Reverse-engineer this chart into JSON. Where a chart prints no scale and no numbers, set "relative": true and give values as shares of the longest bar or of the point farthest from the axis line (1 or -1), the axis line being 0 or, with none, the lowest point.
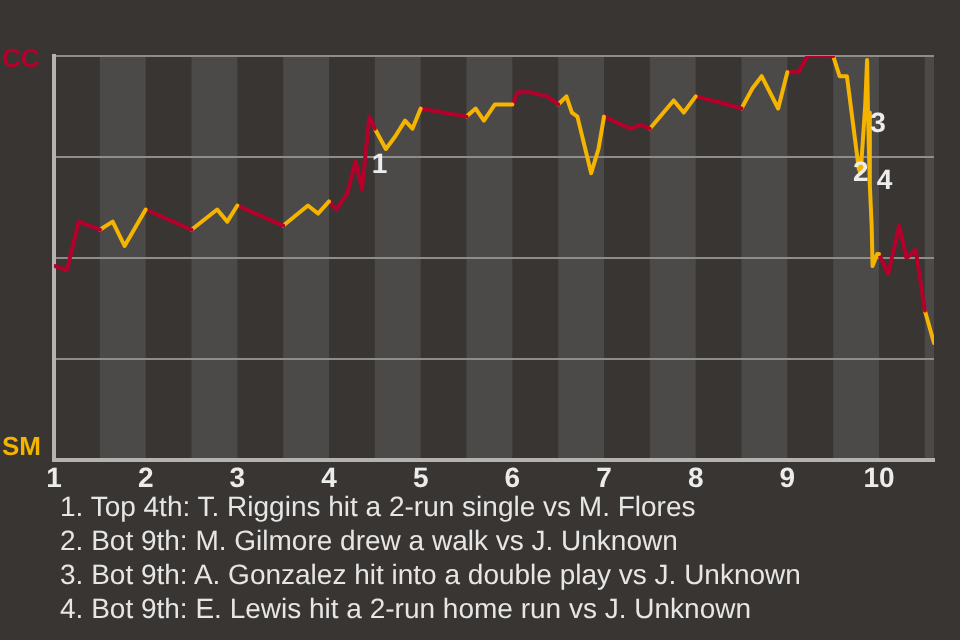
{
  "chart_data": {
    "type": "line",
    "relative": true,
    "xlim": [
      1,
      10.6
    ],
    "xticks": [
      1,
      2,
      3,
      4,
      5,
      6,
      7,
      8,
      9,
      10
    ],
    "grid": "y",
    "marker": "none",
    "line_style": "solid",
    "legend": "left",
    "series": [
      {
        "name": "CC",
        "color": "#b5002c",
        "x": [
          1.01,
          1.14,
          1.27,
          1.5
        ],
        "values": [
          0.48,
          0.47,
          0.59,
          0.57
        ]
      },
      {
        "name": "SM",
        "color": "#f4b400",
        "x": [
          1.5,
          1.64,
          1.77,
          2
        ],
        "values": [
          0.57,
          0.59,
          0.53,
          0.62
        ]
      },
      {
        "color": "#b5002c",
        "x": [
          2,
          2.5
        ],
        "values": [
          0.62,
          0.57
        ]
      },
      {
        "color": "#f4b400",
        "x": [
          2.5,
          2.78,
          2.89,
          3
        ],
        "values": [
          0.57,
          0.62,
          0.59,
          0.63
        ]
      },
      {
        "color": "#b5002c",
        "x": [
          3,
          3.5
        ],
        "values": [
          0.63,
          0.58
        ]
      },
      {
        "color": "#f4b400",
        "x": [
          3.5,
          3.77,
          3.88,
          4
        ],
        "values": [
          0.58,
          0.63,
          0.61,
          0.64
        ]
      },
      {
        "color": "#b5002c",
        "x": [
          4,
          4.08,
          4.2,
          4.29,
          4.36,
          4.44,
          4.5
        ],
        "values": [
          0.64,
          0.62,
          0.66,
          0.74,
          0.67,
          0.85,
          0.82
        ]
      },
      {
        "color": "#f4b400",
        "x": [
          4.5,
          4.62,
          4.72,
          4.83,
          4.91,
          5
        ],
        "values": [
          0.82,
          0.77,
          0.8,
          0.84,
          0.82,
          0.87
        ]
      },
      {
        "color": "#b5002c",
        "x": [
          5,
          5.5
        ],
        "values": [
          0.87,
          0.85
        ]
      },
      {
        "color": "#f4b400",
        "x": [
          5.5,
          5.6,
          5.69,
          5.81,
          6
        ],
        "values": [
          0.85,
          0.87,
          0.84,
          0.88,
          0.88
        ]
      },
      {
        "color": "#b5002c",
        "x": [
          6,
          6.06,
          6.2,
          6.38,
          6.5
        ],
        "values": [
          0.88,
          0.91,
          0.91,
          0.9,
          0.88
        ]
      },
      {
        "color": "#f4b400",
        "x": [
          6.5,
          6.59,
          6.65,
          6.71,
          6.86,
          6.94,
          7
        ],
        "values": [
          0.88,
          0.9,
          0.86,
          0.85,
          0.71,
          0.77,
          0.85
        ]
      },
      {
        "color": "#b5002c",
        "x": [
          7,
          7.29,
          7.41,
          7.5
        ],
        "values": [
          0.85,
          0.82,
          0.83,
          0.82
        ]
      },
      {
        "color": "#f4b400",
        "x": [
          7.5,
          7.76,
          7.87,
          8
        ],
        "values": [
          0.82,
          0.89,
          0.86,
          0.9
        ]
      },
      {
        "color": "#b5002c",
        "x": [
          8,
          8.35,
          8.5
        ],
        "values": [
          0.9,
          0.88,
          0.87
        ]
      },
      {
        "color": "#f4b400",
        "x": [
          8.5,
          8.62,
          8.72,
          8.9,
          9
        ],
        "values": [
          0.87,
          0.92,
          0.95,
          0.87,
          0.96
        ]
      },
      {
        "color": "#b5002c",
        "x": [
          9,
          9.12,
          9.22,
          9.5
        ],
        "values": [
          0.96,
          0.96,
          1,
          1
        ]
      },
      {
        "color": "#f4b400",
        "x": [
          9.5,
          9.57,
          9.65,
          9.78,
          9.8,
          9.85,
          9.87,
          9.88,
          9.9,
          9.92,
          9.93,
          9.98,
          10
        ],
        "values": [
          1,
          0.95,
          0.95,
          0.72,
          0.71,
          0.88,
          0.99,
          0.86,
          0.68,
          0.58,
          0.48,
          0.51,
          0.51
        ]
      },
      {
        "color": "#b5002c",
        "x": [
          10,
          10.1,
          10.22,
          10.3,
          10.4,
          10.5
        ],
        "values": [
          0.51,
          0.46,
          0.58,
          0.5,
          0.52,
          0.37
        ]
      },
      {
        "color": "#f4b400",
        "x": [
          10.5,
          10.6
        ],
        "values": [
          0.37,
          0.29
        ]
      }
    ],
    "bands": [
      {
        "axis": "x",
        "from": 1.5,
        "to": 2,
        "color": "#4c4a48"
      },
      {
        "axis": "x",
        "from": 2.5,
        "to": 3,
        "color": "#4c4a48"
      },
      {
        "axis": "x",
        "from": 3.5,
        "to": 4,
        "color": "#4c4a48"
      },
      {
        "axis": "x",
        "from": 4.5,
        "to": 5,
        "color": "#4c4a48"
      },
      {
        "axis": "x",
        "from": 5.5,
        "to": 6,
        "color": "#4c4a48"
      },
      {
        "axis": "x",
        "from": 6.5,
        "to": 7,
        "color": "#4c4a48"
      },
      {
        "axis": "x",
        "from": 7.5,
        "to": 8,
        "color": "#4c4a48"
      },
      {
        "axis": "x",
        "from": 8.5,
        "to": 9,
        "color": "#4c4a48"
      },
      {
        "axis": "x",
        "from": 9.5,
        "to": 10,
        "color": "#4c4a48"
      },
      {
        "axis": "x",
        "from": 10.5,
        "to": 10.6,
        "color": "#4c4a48"
      }
    ],
    "annotations": [
      {
        "text": "1",
        "x": 4.55,
        "y": 0.73
      },
      {
        "text": "2",
        "x": 9.8,
        "y": 0.71
      },
      {
        "text": "3",
        "x": 9.99,
        "y": 0.83
      },
      {
        "text": "4",
        "x": 10.06,
        "y": 0.69
      },
      "1. Top 4th: T. Riggins hit a 2-run single vs M. Flores",
      "2. Bot 9th: M. Gilmore drew a walk vs J. Unknown",
      "3. Bot 9th: A. Gonzalez hit into a double play vs J. Unknown",
      "4. Bot 9th: E. Lewis hit a 2-run home run vs J. Unknown"
    ]
  }
}
